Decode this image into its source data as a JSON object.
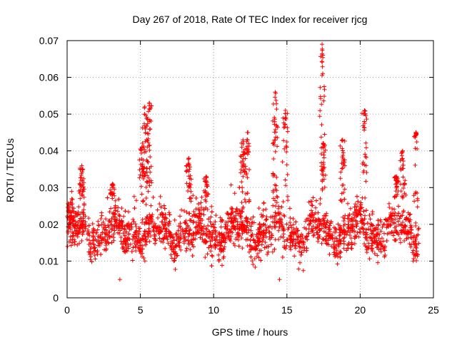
{
  "chart_data": {
    "type": "scatter",
    "title": "Day 267 of 2018, Rate Of TEC Index for receiver rjcg",
    "xlabel": "GPS time / hours",
    "ylabel": "ROTI / TECUs",
    "xlim": [
      0,
      25
    ],
    "ylim": [
      0,
      0.07
    ],
    "xticks": [
      "0",
      "5",
      "10",
      "15",
      "20",
      "25"
    ],
    "yticks": [
      "0",
      "0.01",
      "0.02",
      "0.03",
      "0.04",
      "0.05",
      "0.06",
      "0.07"
    ],
    "grid": true,
    "marker": "+",
    "color": "#ff0000",
    "baseline": {
      "x_range": [
        0,
        24
      ],
      "y_typical_range": [
        0.008,
        0.028
      ]
    },
    "bursts": [
      {
        "x": 0.2,
        "y_min": 0.02,
        "y_max": 0.022
      },
      {
        "x": 1.0,
        "y_min": 0.027,
        "y_max": 0.036
      },
      {
        "x": 3.1,
        "y_min": 0.03,
        "y_max": 0.031
      },
      {
        "x": 5.1,
        "y_min": 0.035,
        "y_max": 0.041
      },
      {
        "x": 5.3,
        "y_min": 0.042,
        "y_max": 0.052
      },
      {
        "x": 5.6,
        "y_min": 0.035,
        "y_max": 0.053
      },
      {
        "x": 8.3,
        "y_min": 0.03,
        "y_max": 0.038
      },
      {
        "x": 9.5,
        "y_min": 0.03,
        "y_max": 0.033
      },
      {
        "x": 12.0,
        "y_min": 0.035,
        "y_max": 0.043
      },
      {
        "x": 12.3,
        "y_min": 0.04,
        "y_max": 0.045
      },
      {
        "x": 14.2,
        "y_min": 0.04,
        "y_max": 0.056
      },
      {
        "x": 14.9,
        "y_min": 0.045,
        "y_max": 0.051
      },
      {
        "x": 17.4,
        "y_min": 0.06,
        "y_max": 0.069
      },
      {
        "x": 17.5,
        "y_min": 0.035,
        "y_max": 0.042
      },
      {
        "x": 18.8,
        "y_min": 0.035,
        "y_max": 0.043
      },
      {
        "x": 20.3,
        "y_min": 0.044,
        "y_max": 0.051
      },
      {
        "x": 22.5,
        "y_min": 0.03,
        "y_max": 0.033
      },
      {
        "x": 22.9,
        "y_min": 0.035,
        "y_max": 0.04
      },
      {
        "x": 23.8,
        "y_min": 0.044,
        "y_max": 0.045
      }
    ],
    "isolated_points": [
      {
        "x": 14.5,
        "y": 0.005
      },
      {
        "x": 3.6,
        "y": 0.005
      },
      {
        "x": 20.4,
        "y": 0.036
      },
      {
        "x": 14.7,
        "y": 0.037
      }
    ]
  }
}
